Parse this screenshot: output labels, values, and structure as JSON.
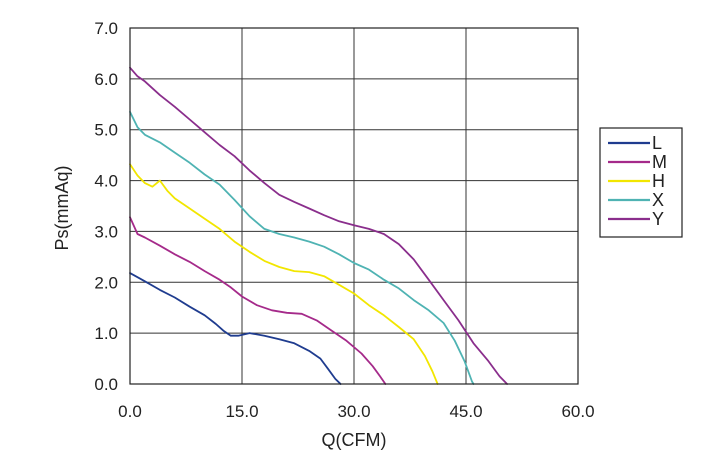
{
  "chart_data": {
    "type": "line",
    "xlabel": "Q(CFM)",
    "ylabel": "Ps(mmAq)",
    "xlim": [
      0,
      60
    ],
    "ylim": [
      0,
      7
    ],
    "x_ticks": [
      "0.0",
      "15.0",
      "30.0",
      "45.0",
      "60.0"
    ],
    "y_ticks": [
      "0.0",
      "1.0",
      "2.0",
      "3.0",
      "4.0",
      "5.0",
      "6.0",
      "7.0"
    ],
    "grid": true,
    "legend_position": "right",
    "series": [
      {
        "name": "L",
        "color": "#1f3c8f",
        "points": [
          [
            0,
            2.18
          ],
          [
            1,
            2.1
          ],
          [
            2,
            2.02
          ],
          [
            4,
            1.85
          ],
          [
            6,
            1.7
          ],
          [
            8,
            1.52
          ],
          [
            10,
            1.35
          ],
          [
            11.5,
            1.18
          ],
          [
            12.5,
            1.05
          ],
          [
            13.5,
            0.95
          ],
          [
            14.5,
            0.95
          ],
          [
            16,
            1.0
          ],
          [
            18,
            0.95
          ],
          [
            20,
            0.88
          ],
          [
            22,
            0.8
          ],
          [
            24,
            0.65
          ],
          [
            25.5,
            0.5
          ],
          [
            26.5,
            0.3
          ],
          [
            27.5,
            0.1
          ],
          [
            28.2,
            0.0
          ]
        ]
      },
      {
        "name": "M",
        "color": "#a52a8a",
        "points": [
          [
            0,
            3.28
          ],
          [
            1,
            2.95
          ],
          [
            2,
            2.88
          ],
          [
            4,
            2.72
          ],
          [
            6,
            2.55
          ],
          [
            8,
            2.4
          ],
          [
            10,
            2.22
          ],
          [
            12,
            2.05
          ],
          [
            13.5,
            1.9
          ],
          [
            15,
            1.72
          ],
          [
            17,
            1.55
          ],
          [
            19,
            1.45
          ],
          [
            21,
            1.4
          ],
          [
            23,
            1.38
          ],
          [
            25,
            1.25
          ],
          [
            27,
            1.05
          ],
          [
            29,
            0.85
          ],
          [
            31,
            0.6
          ],
          [
            32.5,
            0.35
          ],
          [
            33.5,
            0.15
          ],
          [
            34.2,
            0.0
          ]
        ]
      },
      {
        "name": "H",
        "color": "#f2e600",
        "points": [
          [
            0,
            4.32
          ],
          [
            1,
            4.1
          ],
          [
            2,
            3.95
          ],
          [
            3,
            3.88
          ],
          [
            4,
            4.0
          ],
          [
            5,
            3.8
          ],
          [
            6,
            3.65
          ],
          [
            8,
            3.45
          ],
          [
            10,
            3.25
          ],
          [
            12,
            3.05
          ],
          [
            14,
            2.8
          ],
          [
            16,
            2.6
          ],
          [
            18,
            2.42
          ],
          [
            20,
            2.3
          ],
          [
            22,
            2.22
          ],
          [
            24,
            2.2
          ],
          [
            26,
            2.12
          ],
          [
            28,
            1.95
          ],
          [
            30,
            1.78
          ],
          [
            32,
            1.55
          ],
          [
            34,
            1.35
          ],
          [
            36,
            1.12
          ],
          [
            38,
            0.88
          ],
          [
            39.5,
            0.55
          ],
          [
            40.5,
            0.25
          ],
          [
            41.2,
            0.0
          ]
        ]
      },
      {
        "name": "X",
        "color": "#4fb3b3",
        "points": [
          [
            0,
            5.35
          ],
          [
            1,
            5.05
          ],
          [
            2,
            4.9
          ],
          [
            4,
            4.75
          ],
          [
            6,
            4.55
          ],
          [
            8,
            4.35
          ],
          [
            10,
            4.12
          ],
          [
            12,
            3.92
          ],
          [
            14,
            3.62
          ],
          [
            16,
            3.3
          ],
          [
            18,
            3.05
          ],
          [
            20,
            2.95
          ],
          [
            22,
            2.88
          ],
          [
            24,
            2.8
          ],
          [
            26,
            2.7
          ],
          [
            28,
            2.55
          ],
          [
            30,
            2.38
          ],
          [
            32,
            2.25
          ],
          [
            34,
            2.05
          ],
          [
            36,
            1.88
          ],
          [
            38,
            1.65
          ],
          [
            40,
            1.45
          ],
          [
            42,
            1.2
          ],
          [
            43.5,
            0.85
          ],
          [
            44.8,
            0.45
          ],
          [
            45.8,
            0.05
          ],
          [
            46,
            0.0
          ]
        ]
      },
      {
        "name": "Y",
        "color": "#8a2e8c",
        "points": [
          [
            0,
            6.22
          ],
          [
            1,
            6.05
          ],
          [
            2,
            5.95
          ],
          [
            4,
            5.68
          ],
          [
            6,
            5.45
          ],
          [
            8,
            5.2
          ],
          [
            10,
            4.95
          ],
          [
            12,
            4.7
          ],
          [
            14,
            4.48
          ],
          [
            16,
            4.2
          ],
          [
            18,
            3.95
          ],
          [
            20,
            3.72
          ],
          [
            22,
            3.58
          ],
          [
            24,
            3.45
          ],
          [
            26,
            3.32
          ],
          [
            28,
            3.2
          ],
          [
            30,
            3.12
          ],
          [
            32,
            3.05
          ],
          [
            34,
            2.95
          ],
          [
            36,
            2.75
          ],
          [
            38,
            2.45
          ],
          [
            40,
            2.05
          ],
          [
            42,
            1.65
          ],
          [
            44,
            1.25
          ],
          [
            46,
            0.8
          ],
          [
            48,
            0.45
          ],
          [
            49.5,
            0.15
          ],
          [
            50.5,
            0.0
          ]
        ]
      }
    ]
  }
}
